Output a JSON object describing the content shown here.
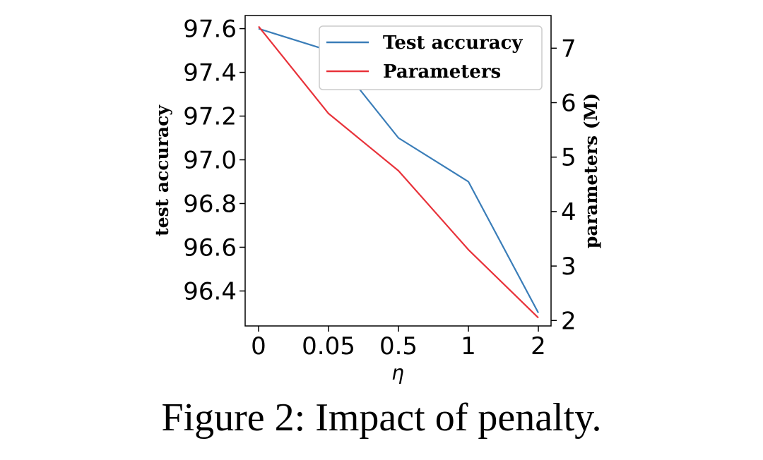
{
  "chart_data": {
    "type": "line",
    "categories": [
      "0",
      "0.05",
      "0.5",
      "1",
      "2"
    ],
    "xlabel": "η",
    "ylabel_left": "test accuracy",
    "ylabel_right": "parameters (M)",
    "y_left_ticks": [
      "97.6",
      "97.4",
      "97.2",
      "97.0",
      "96.8",
      "96.6",
      "96.4"
    ],
    "y_right_ticks": [
      "7",
      "6",
      "5",
      "4",
      "3",
      "2"
    ],
    "y_left_lim": [
      96.24,
      97.66
    ],
    "y_right_lim": [
      1.9,
      7.6
    ],
    "legend_position": "top-right",
    "series": [
      {
        "name": "Test accuracy",
        "axis": "left",
        "color": "#3a7db8",
        "values": [
          97.6,
          97.5,
          97.1,
          96.9,
          96.3
        ]
      },
      {
        "name": "Parameters",
        "axis": "right",
        "color": "#e8323a",
        "values": [
          7.4,
          5.8,
          4.75,
          3.3,
          2.05
        ]
      }
    ]
  },
  "caption": "Figure 2: Impact of penalty."
}
